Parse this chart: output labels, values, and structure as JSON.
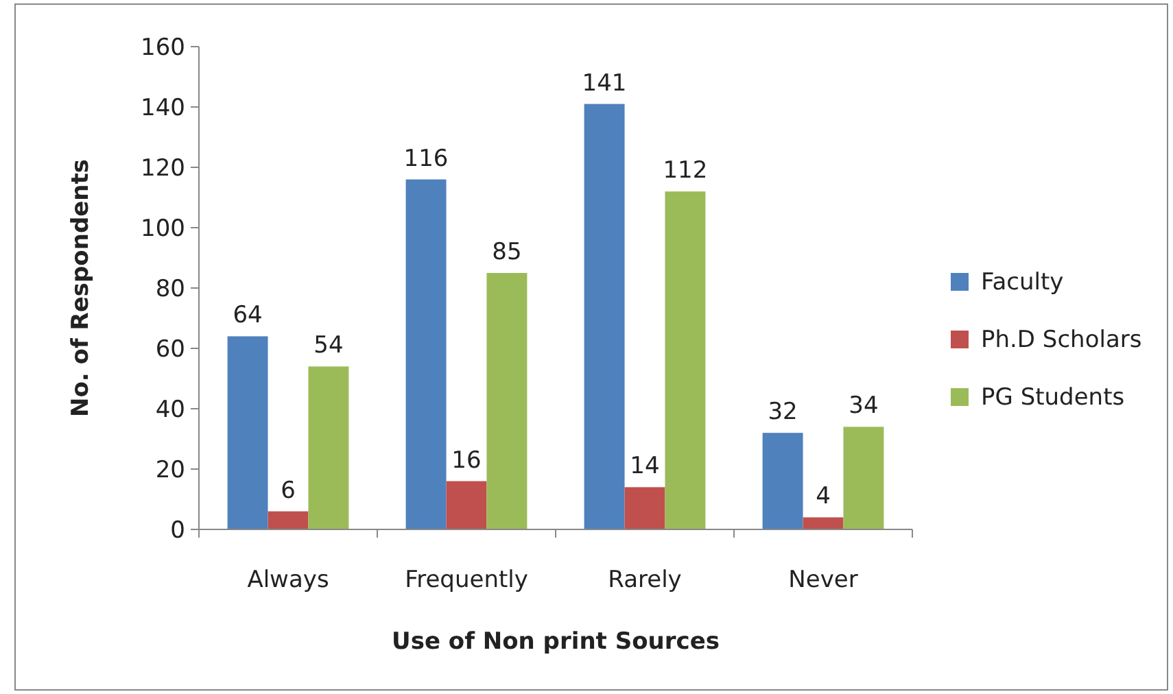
{
  "chart_data": {
    "type": "bar",
    "xlabel": "Use of Non print Sources",
    "ylabel": "No. of Respondents",
    "categories": [
      "Always",
      "Frequently",
      "Rarely",
      "Never"
    ],
    "series": [
      {
        "name": "Faculty",
        "color": "#4f81bd",
        "values": [
          64,
          116,
          141,
          32
        ]
      },
      {
        "name": "Ph.D Scholars",
        "color": "#c0504d",
        "values": [
          6,
          16,
          14,
          4
        ]
      },
      {
        "name": "PG Students",
        "color": "#9bbb59",
        "values": [
          54,
          85,
          112,
          34
        ]
      }
    ],
    "ylim": [
      0,
      160
    ],
    "yticks": [
      0,
      20,
      40,
      60,
      80,
      100,
      120,
      140,
      160
    ],
    "data_labels": true,
    "legend": "right",
    "grid": false
  }
}
